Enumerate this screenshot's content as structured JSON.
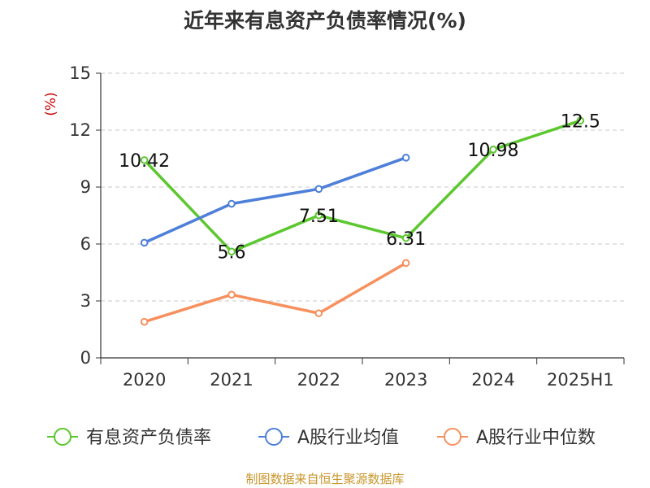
{
  "chart_data": {
    "type": "line",
    "title": "近年来有息资产负债率情况(%)",
    "ylabel": "(%)",
    "xlabel": "",
    "ylim": [
      0,
      15
    ],
    "yticks": [
      "0",
      "3",
      "6",
      "9",
      "12",
      "15"
    ],
    "categories": [
      "2020",
      "2021",
      "2022",
      "2023",
      "2024",
      "2025H1"
    ],
    "grid": true,
    "legend_position": "bottom",
    "series": [
      {
        "name": "有息资产负债率",
        "color": "#5cc72f",
        "values": [
          10.42,
          5.6,
          7.51,
          6.31,
          10.98,
          12.5
        ],
        "labels": [
          "10.42",
          "5.6",
          "7.51",
          "6.31",
          "10.98",
          "12.5"
        ]
      },
      {
        "name": "A股行业均值",
        "color": "#4e7fd9",
        "values": [
          6.07,
          8.12,
          8.9,
          10.55,
          null,
          null
        ]
      },
      {
        "name": "A股行业中位数",
        "color": "#f7905e",
        "values": [
          1.9,
          3.33,
          2.35,
          5.0,
          null,
          null
        ]
      }
    ]
  },
  "source": "制图数据来自恒生聚源数据库"
}
